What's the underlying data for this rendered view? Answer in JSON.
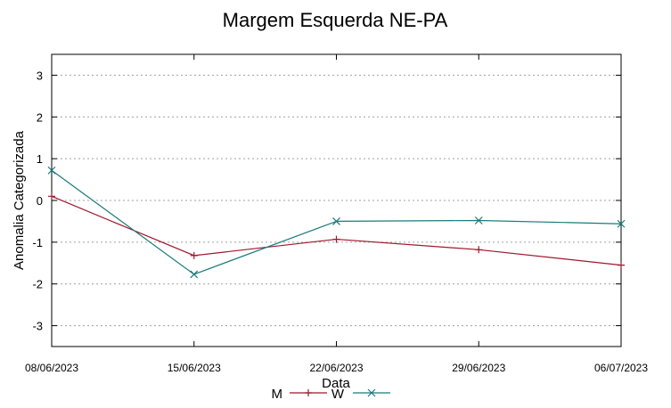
{
  "chart_data": {
    "type": "line",
    "title": "Margem Esquerda NE-PA",
    "xlabel": "Data",
    "ylabel": "Anomalia Categorizada",
    "categories": [
      "08/06/2023",
      "15/06/2023",
      "22/06/2023",
      "29/06/2023",
      "06/07/2023"
    ],
    "ylim": [
      -3.5,
      3.5
    ],
    "yticks": [
      3,
      2,
      1,
      0,
      -1,
      -2,
      -3
    ],
    "grid": true,
    "legend": "bottom-center",
    "series": [
      {
        "name": "M",
        "color": "#a0162c",
        "marker": "plus",
        "values": [
          0.1,
          -1.32,
          -0.93,
          -1.18,
          -1.55
        ]
      },
      {
        "name": "W",
        "color": "#1a7a7a",
        "marker": "x",
        "values": [
          0.72,
          -1.77,
          -0.5,
          -0.48,
          -0.56
        ]
      }
    ]
  }
}
